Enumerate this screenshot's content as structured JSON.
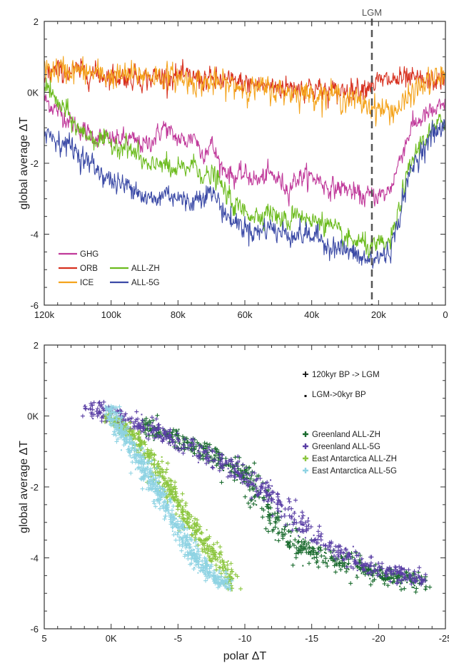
{
  "chart_data": [
    {
      "type": "line",
      "ylabel": "global average ΔT",
      "xlim": [
        120,
        0
      ],
      "ylim": [
        -6,
        2
      ],
      "x_unit": "kyr BP",
      "x_ticks": [
        {
          "value": 120,
          "label": "120k"
        },
        {
          "value": 100,
          "label": "100k"
        },
        {
          "value": 80,
          "label": "80k"
        },
        {
          "value": 60,
          "label": "60k"
        },
        {
          "value": 40,
          "label": "40k"
        },
        {
          "value": 20,
          "label": "20k"
        },
        {
          "value": 0,
          "label": "0"
        }
      ],
      "y_ticks": [
        {
          "value": 2,
          "label": "2"
        },
        {
          "value": 0,
          "label": "0K"
        },
        {
          "value": -2,
          "label": "-2"
        },
        {
          "value": -4,
          "label": "-4"
        },
        {
          "value": -6,
          "label": "-6"
        }
      ],
      "annotation": {
        "label": "LGM",
        "x": 22
      },
      "legend_position": "bottom-left",
      "series": [
        {
          "name": "GHG",
          "color": "#c0399a",
          "noise": 0.13,
          "points": [
            [
              120,
              -0.2
            ],
            [
              115,
              -0.6
            ],
            [
              110,
              -1.0
            ],
            [
              105,
              -1.25
            ],
            [
              100,
              -1.35
            ],
            [
              95,
              -1.3
            ],
            [
              90,
              -1.5
            ],
            [
              87,
              -1.3
            ],
            [
              84,
              -0.95
            ],
            [
              82,
              -1.2
            ],
            [
              78,
              -1.4
            ],
            [
              75,
              -1.2
            ],
            [
              73,
              -1.75
            ],
            [
              70,
              -1.45
            ],
            [
              67,
              -2.1
            ],
            [
              63,
              -2.4
            ],
            [
              60,
              -2.3
            ],
            [
              56,
              -2.5
            ],
            [
              53,
              -2.3
            ],
            [
              50,
              -2.45
            ],
            [
              47,
              -2.75
            ],
            [
              45,
              -2.45
            ],
            [
              42,
              -2.35
            ],
            [
              38,
              -2.45
            ],
            [
              35,
              -2.7
            ],
            [
              30,
              -2.7
            ],
            [
              25,
              -2.95
            ],
            [
              22,
              -2.9
            ],
            [
              18,
              -2.9
            ],
            [
              16,
              -2.6
            ],
            [
              13,
              -1.7
            ],
            [
              10,
              -0.95
            ],
            [
              5,
              -0.6
            ],
            [
              0,
              -0.4
            ]
          ]
        },
        {
          "name": "ORB",
          "color": "#d7301f",
          "noise": 0.15,
          "points": [
            [
              120,
              0.55
            ],
            [
              110,
              0.6
            ],
            [
              100,
              0.45
            ],
            [
              90,
              0.4
            ],
            [
              80,
              0.45
            ],
            [
              70,
              0.35
            ],
            [
              60,
              0.25
            ],
            [
              50,
              0.15
            ],
            [
              40,
              0.15
            ],
            [
              35,
              0.0
            ],
            [
              30,
              0.05
            ],
            [
              25,
              0.15
            ],
            [
              20,
              0.3
            ],
            [
              15,
              0.35
            ],
            [
              10,
              0.35
            ],
            [
              5,
              0.3
            ],
            [
              0,
              0.4
            ]
          ]
        },
        {
          "name": "ICE",
          "color": "#f4a31c",
          "noise": 0.17,
          "points": [
            [
              120,
              0.65
            ],
            [
              110,
              0.6
            ],
            [
              100,
              0.45
            ],
            [
              90,
              0.5
            ],
            [
              80,
              0.4
            ],
            [
              70,
              0.25
            ],
            [
              60,
              0.15
            ],
            [
              50,
              0.05
            ],
            [
              40,
              -0.05
            ],
            [
              35,
              -0.05
            ],
            [
              30,
              -0.15
            ],
            [
              25,
              -0.3
            ],
            [
              22,
              -0.4
            ],
            [
              18,
              -0.5
            ],
            [
              15,
              -0.5
            ],
            [
              12,
              -0.3
            ],
            [
              10,
              0.0
            ],
            [
              5,
              0.3
            ],
            [
              0,
              0.45
            ]
          ]
        },
        {
          "name": "ALL-ZH",
          "color": "#6cbb1e",
          "noise": 0.14,
          "points": [
            [
              120,
              0.35
            ],
            [
              117,
              -0.2
            ],
            [
              113,
              -0.6
            ],
            [
              110,
              -1.05
            ],
            [
              105,
              -1.3
            ],
            [
              100,
              -1.45
            ],
            [
              95,
              -1.55
            ],
            [
              92,
              -1.8
            ],
            [
              88,
              -2.2
            ],
            [
              85,
              -1.9
            ],
            [
              82,
              -2.25
            ],
            [
              78,
              -2.15
            ],
            [
              75,
              -2.0
            ],
            [
              72,
              -2.4
            ],
            [
              69,
              -2.35
            ],
            [
              66,
              -2.8
            ],
            [
              63,
              -3.2
            ],
            [
              60,
              -3.35
            ],
            [
              56,
              -3.5
            ],
            [
              53,
              -3.3
            ],
            [
              50,
              -3.55
            ],
            [
              47,
              -3.7
            ],
            [
              45,
              -3.3
            ],
            [
              42,
              -3.55
            ],
            [
              40,
              -3.7
            ],
            [
              38,
              -3.55
            ],
            [
              35,
              -3.75
            ],
            [
              30,
              -4.15
            ],
            [
              25,
              -4.25
            ],
            [
              22,
              -4.4
            ],
            [
              19,
              -4.3
            ],
            [
              17,
              -4.3
            ],
            [
              15,
              -3.8
            ],
            [
              13,
              -2.9
            ],
            [
              10,
              -1.95
            ],
            [
              7,
              -1.35
            ],
            [
              3,
              -1.0
            ],
            [
              0,
              -0.75
            ]
          ]
        },
        {
          "name": "ALL-5G",
          "color": "#3b4aa6",
          "noise": 0.15,
          "points": [
            [
              120,
              -1.1
            ],
            [
              115,
              -1.4
            ],
            [
              112,
              -1.5
            ],
            [
              108,
              -1.9
            ],
            [
              105,
              -2.1
            ],
            [
              100,
              -2.5
            ],
            [
              96,
              -2.65
            ],
            [
              93,
              -2.6
            ],
            [
              90,
              -3.0
            ],
            [
              86,
              -3.05
            ],
            [
              84,
              -2.8
            ],
            [
              80,
              -2.95
            ],
            [
              78,
              -3.1
            ],
            [
              75,
              -3.05
            ],
            [
              72,
              -2.8
            ],
            [
              69,
              -2.9
            ],
            [
              66,
              -3.4
            ],
            [
              64,
              -3.6
            ],
            [
              60,
              -3.8
            ],
            [
              56,
              -3.95
            ],
            [
              53,
              -3.75
            ],
            [
              50,
              -3.95
            ],
            [
              45,
              -4.0
            ],
            [
              42,
              -4.0
            ],
            [
              38,
              -4.1
            ],
            [
              35,
              -4.3
            ],
            [
              30,
              -4.45
            ],
            [
              25,
              -4.7
            ],
            [
              22,
              -4.75
            ],
            [
              19,
              -4.6
            ],
            [
              17,
              -4.5
            ],
            [
              15,
              -4.05
            ],
            [
              13,
              -3.1
            ],
            [
              10,
              -2.15
            ],
            [
              7,
              -1.6
            ],
            [
              3,
              -1.1
            ],
            [
              0,
              -1.0
            ]
          ]
        }
      ]
    },
    {
      "type": "scatter",
      "xlabel": "polar ΔT",
      "ylabel": "global average ΔT",
      "xlim": [
        5,
        -25
      ],
      "ylim": [
        -6,
        2
      ],
      "x_ticks": [
        {
          "value": 5,
          "label": "5"
        },
        {
          "value": 0,
          "label": "0K"
        },
        {
          "value": -5,
          "label": "-5"
        },
        {
          "value": -10,
          "label": "-10"
        },
        {
          "value": -15,
          "label": "-15"
        },
        {
          "value": -20,
          "label": "-20"
        },
        {
          "value": -25,
          "label": "-25"
        }
      ],
      "y_ticks": [
        {
          "value": 2,
          "label": "2"
        },
        {
          "value": 0,
          "label": "0K"
        },
        {
          "value": -2,
          "label": "-2"
        },
        {
          "value": -4,
          "label": "-4"
        },
        {
          "value": -6,
          "label": "-6"
        }
      ],
      "marker_legend": [
        {
          "marker": "+",
          "label": "120kyr BP -> LGM"
        },
        {
          "marker": ".",
          "label": "LGM->0kyr BP"
        }
      ],
      "legend_position": "top-right",
      "series": [
        {
          "name": "Greenland ALL-ZH",
          "color": "#1a6b2e",
          "path": [
            [
              -2.5,
              -0.35
            ],
            [
              -4,
              -0.45
            ],
            [
              -6,
              -0.8
            ],
            [
              -8,
              -1.2
            ],
            [
              -9,
              -1.5
            ],
            [
              -10,
              -1.6
            ],
            [
              -11,
              -2.1
            ],
            [
              -12,
              -2.8
            ],
            [
              -13,
              -3.3
            ],
            [
              -14,
              -3.7
            ],
            [
              -15,
              -3.85
            ],
            [
              -17,
              -4.1
            ],
            [
              -19,
              -4.3
            ],
            [
              -21,
              -4.55
            ],
            [
              -23.5,
              -4.7
            ]
          ],
          "spread": 0.42,
          "count": 650
        },
        {
          "name": "Greenland ALL-5G",
          "color": "#5a3fa5",
          "path": [
            [
              2,
              0.3
            ],
            [
              0,
              0.05
            ],
            [
              -2,
              -0.25
            ],
            [
              -4,
              -0.55
            ],
            [
              -6,
              -0.9
            ],
            [
              -8,
              -1.25
            ],
            [
              -10,
              -1.7
            ],
            [
              -12,
              -2.25
            ],
            [
              -14,
              -3.0
            ],
            [
              -16,
              -3.6
            ],
            [
              -18,
              -4.05
            ],
            [
              -20,
              -4.3
            ],
            [
              -22,
              -4.5
            ],
            [
              -23.5,
              -4.6
            ]
          ],
          "spread": 0.42,
          "count": 650
        },
        {
          "name": "East Antarctica ALL-ZH",
          "color": "#8cc63f",
          "path": [
            [
              0.2,
              -0.05
            ],
            [
              -1,
              -0.3
            ],
            [
              -2,
              -0.7
            ],
            [
              -3,
              -1.2
            ],
            [
              -3.8,
              -1.8
            ],
            [
              -4.5,
              -2.2
            ],
            [
              -5.5,
              -2.8
            ],
            [
              -6.5,
              -3.3
            ],
            [
              -7.5,
              -3.8
            ],
            [
              -8.5,
              -4.3
            ],
            [
              -9.2,
              -4.8
            ]
          ],
          "spread": 0.22,
          "count": 500
        },
        {
          "name": "East Antarctica ALL-5G",
          "color": "#8fd3e3",
          "path": [
            [
              0.2,
              0.3
            ],
            [
              -0.5,
              -0.3
            ],
            [
              -1.5,
              -0.9
            ],
            [
              -2.5,
              -1.5
            ],
            [
              -3.5,
              -2.1
            ],
            [
              -4.5,
              -2.8
            ],
            [
              -5.5,
              -3.5
            ],
            [
              -6.5,
              -4.1
            ],
            [
              -7.5,
              -4.5
            ],
            [
              -8.8,
              -4.75
            ]
          ],
          "spread": 0.2,
          "count": 650
        }
      ]
    }
  ]
}
